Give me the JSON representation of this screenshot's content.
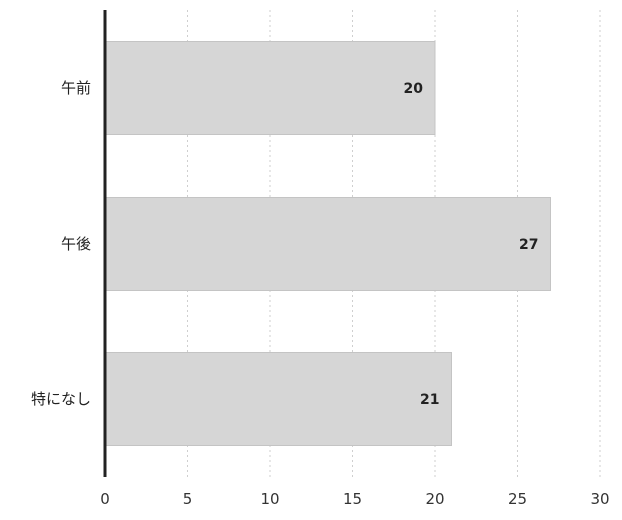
{
  "chart_data": {
    "type": "bar",
    "orientation": "horizontal",
    "categories": [
      "午前",
      "午後",
      "特になし"
    ],
    "values": [
      20,
      27,
      21
    ],
    "data_labels": [
      "20",
      "27",
      "21"
    ],
    "title": "",
    "xlabel": "",
    "ylabel": "",
    "xlim": [
      0,
      30
    ],
    "x_ticks": [
      0,
      5,
      10,
      15,
      20,
      25,
      30
    ],
    "x_tick_labels": [
      "0",
      "5",
      "10",
      "15",
      "20",
      "25",
      "30"
    ],
    "grid": "vertical-dashed",
    "legend": "none",
    "bar_color": "#d6d6d6",
    "bar_edge_color": "#c4c4c4",
    "axis_color": "#222222",
    "grid_color": "#cfcfcf"
  }
}
